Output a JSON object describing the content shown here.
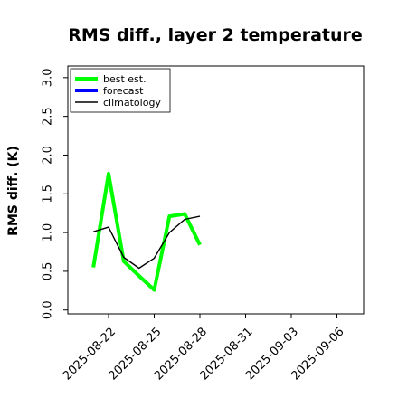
{
  "chart_data": {
    "type": "line",
    "title": "RMS diff., layer 2 temperature",
    "xlabel": "",
    "ylabel": "RMS diff. (K)",
    "ylim": [
      -0.05,
      3.15
    ],
    "yticks": [
      "0.0",
      "0.5",
      "1.0",
      "1.5",
      "2.0",
      "2.5",
      "3.0"
    ],
    "xticks": [
      "2025-08-22",
      "2025-08-25",
      "2025-08-28",
      "2025-08-31",
      "2025-09-03",
      "2025-09-06"
    ],
    "highlight_xtick": "2025-08-28",
    "highlight_color": "#228B22",
    "grid": false,
    "legend_position": "upper left",
    "series": [
      {
        "name": "best est.",
        "color": "#00ff00",
        "x": [
          "2025-08-21",
          "2025-08-22",
          "2025-08-23",
          "2025-08-24",
          "2025-08-25",
          "2025-08-26",
          "2025-08-27",
          "2025-08-28"
        ],
        "y": [
          0.55,
          1.76,
          0.63,
          0.44,
          0.26,
          1.21,
          1.24,
          0.84
        ]
      },
      {
        "name": "forecast",
        "color": "#0000ff",
        "x": [],
        "y": []
      },
      {
        "name": "climatology",
        "color": "#000000",
        "x": [
          "2025-08-21",
          "2025-08-22",
          "2025-08-23",
          "2025-08-24",
          "2025-08-25",
          "2025-08-26",
          "2025-08-27",
          "2025-08-28"
        ],
        "y": [
          1.01,
          1.07,
          0.68,
          0.54,
          0.67,
          1.0,
          1.17,
          1.21
        ]
      }
    ]
  }
}
